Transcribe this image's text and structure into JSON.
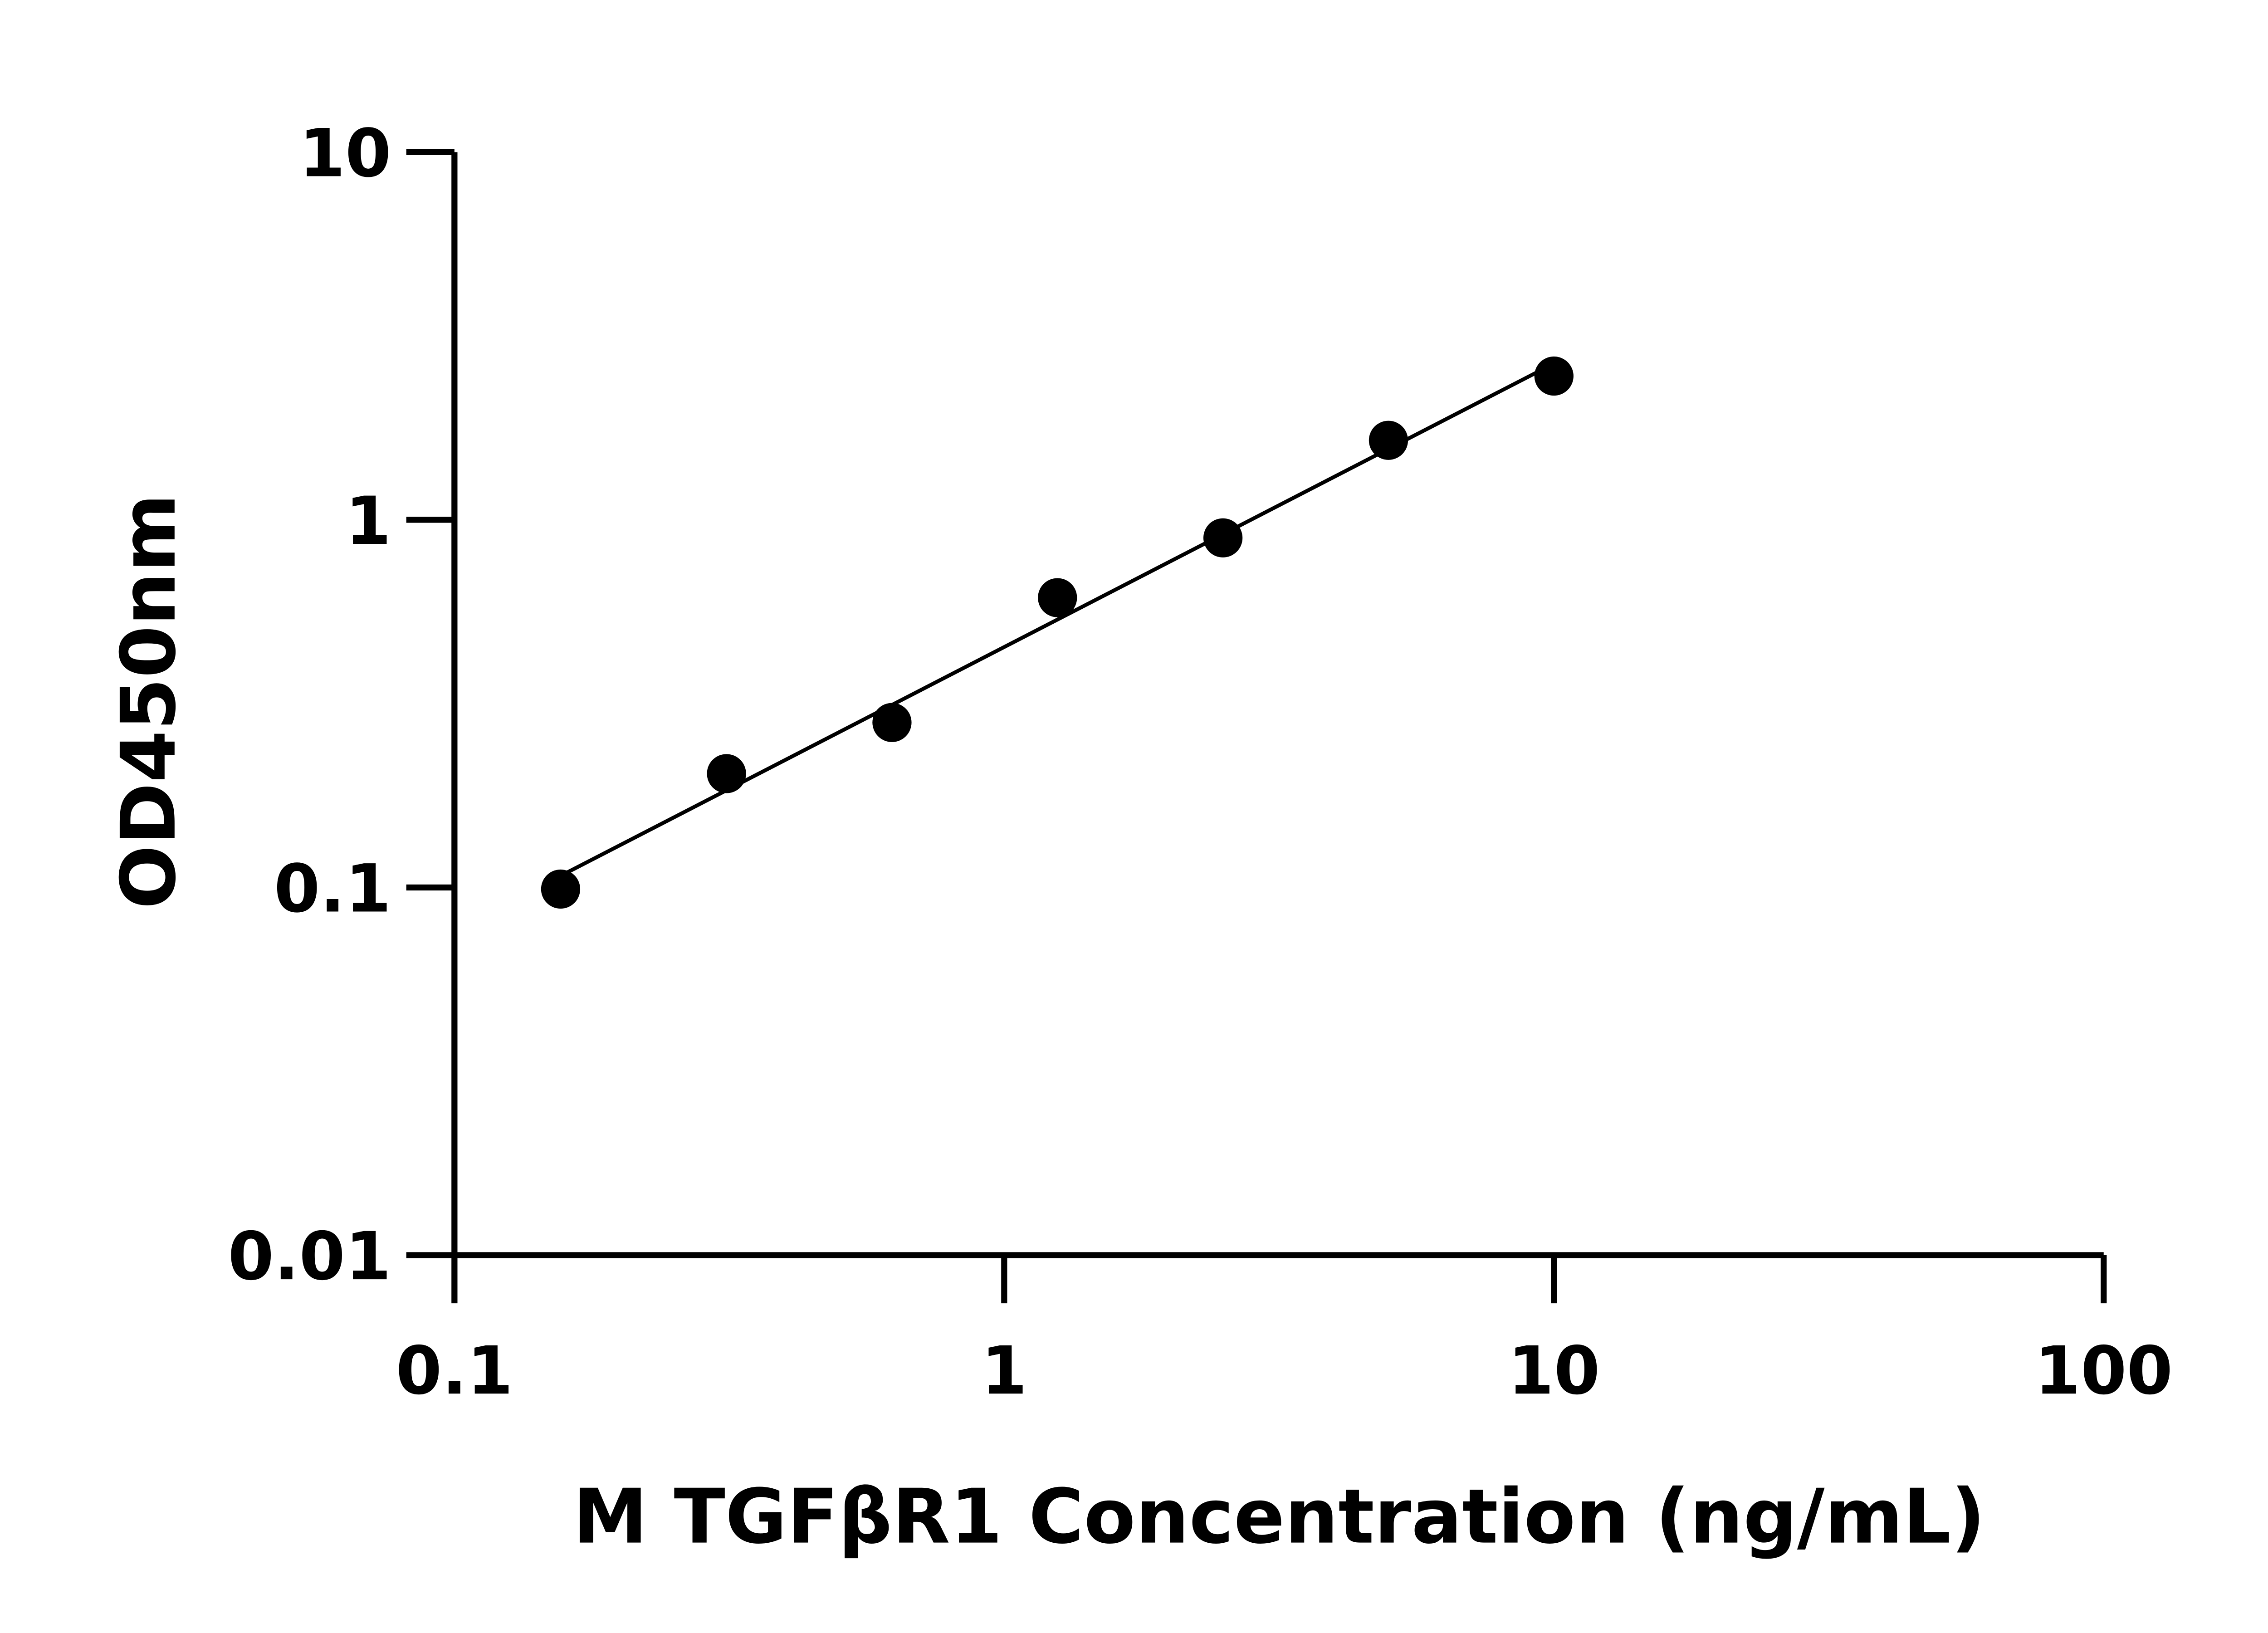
{
  "chart_data": {
    "type": "scatter",
    "xlabel": "M TGFβR1 Concentration (ng/mL)",
    "ylabel": "OD450nm",
    "x_scale": "log",
    "y_scale": "log",
    "xlim": [
      0.1,
      100
    ],
    "ylim": [
      0.01,
      10
    ],
    "x_ticks": [
      "0.1",
      "1",
      "10",
      "100"
    ],
    "y_ticks": [
      "0.01",
      "0.1",
      "1",
      "10"
    ],
    "grid": false,
    "fit_line": true,
    "series": [
      {
        "x": [
          0.156,
          0.3125,
          0.625,
          1.25,
          2.5,
          5,
          10
        ],
        "y": [
          0.099,
          0.204,
          0.281,
          0.614,
          0.893,
          1.645,
          2.46
        ]
      }
    ],
    "colors": {
      "marker": "#000000",
      "line": "#000000",
      "axis": "#000000"
    }
  }
}
